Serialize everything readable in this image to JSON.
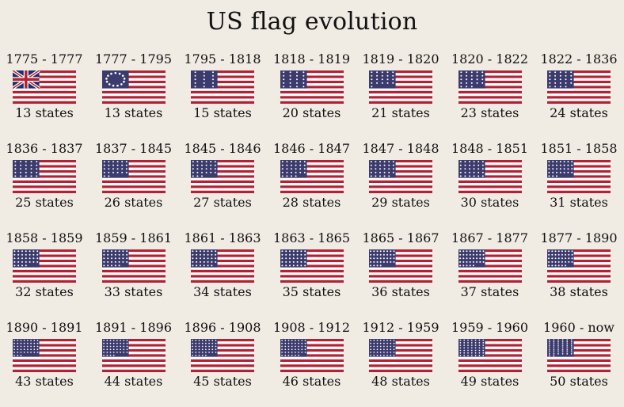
{
  "title": "US flag evolution",
  "colors": {
    "background": "#f0ebe3",
    "red": "#b22234",
    "white": "#ffffff",
    "blue": "#3c3b6e",
    "union_jack_blue": "#1f2f6b"
  },
  "flags": [
    {
      "years": "1775 - 1777",
      "states_label": "13 states",
      "stars": 0,
      "canton": "union-jack"
    },
    {
      "years": "1777 - 1795",
      "states_label": "13 states",
      "stars": 13
    },
    {
      "years": "1795 - 1818",
      "states_label": "15 states",
      "stars": 15
    },
    {
      "years": "1818 - 1819",
      "states_label": "20 states",
      "stars": 20
    },
    {
      "years": "1819 - 1820",
      "states_label": "21 states",
      "stars": 21
    },
    {
      "years": "1820 - 1822",
      "states_label": "23 states",
      "stars": 23
    },
    {
      "years": "1822 - 1836",
      "states_label": "24 states",
      "stars": 24
    },
    {
      "years": "1836 - 1837",
      "states_label": "25 states",
      "stars": 25
    },
    {
      "years": "1837 - 1845",
      "states_label": "26 states",
      "stars": 26
    },
    {
      "years": "1845 - 1846",
      "states_label": "27 states",
      "stars": 27
    },
    {
      "years": "1846 - 1847",
      "states_label": "28 states",
      "stars": 28
    },
    {
      "years": "1847 - 1848",
      "states_label": "29 states",
      "stars": 29
    },
    {
      "years": "1848 - 1851",
      "states_label": "30 states",
      "stars": 30
    },
    {
      "years": "1851 - 1858",
      "states_label": "31 states",
      "stars": 31
    },
    {
      "years": "1858 - 1859",
      "states_label": "32 states",
      "stars": 32
    },
    {
      "years": "1859 - 1861",
      "states_label": "33 states",
      "stars": 33
    },
    {
      "years": "1861 - 1863",
      "states_label": "34 states",
      "stars": 34
    },
    {
      "years": "1863 - 1865",
      "states_label": "35 states",
      "stars": 35
    },
    {
      "years": "1865 - 1867",
      "states_label": "36 states",
      "stars": 36
    },
    {
      "years": "1867 - 1877",
      "states_label": "37 states",
      "stars": 37
    },
    {
      "years": "1877 - 1890",
      "states_label": "38 states",
      "stars": 38
    },
    {
      "years": "1890 - 1891",
      "states_label": "43 states",
      "stars": 43
    },
    {
      "years": "1891 - 1896",
      "states_label": "44 states",
      "stars": 44
    },
    {
      "years": "1896 - 1908",
      "states_label": "45 states",
      "stars": 45
    },
    {
      "years": "1908 - 1912",
      "states_label": "46 states",
      "stars": 46
    },
    {
      "years": "1912 - 1959",
      "states_label": "48 states",
      "stars": 48
    },
    {
      "years": "1959 - 1960",
      "states_label": "49 states",
      "stars": 49
    },
    {
      "years": "1960 - now",
      "states_label": "50 states",
      "stars": 50
    }
  ]
}
